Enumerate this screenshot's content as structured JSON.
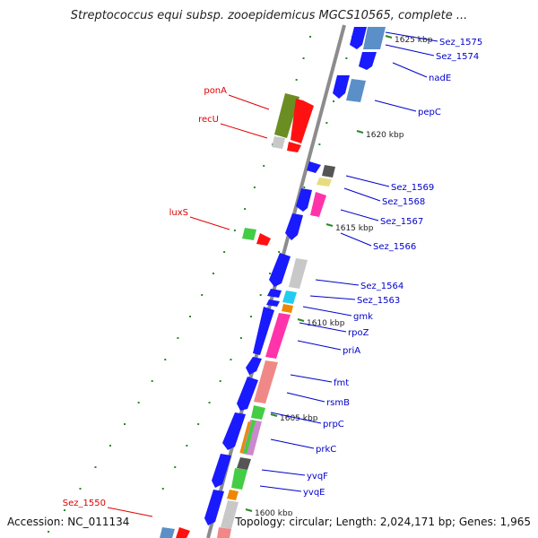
{
  "title": "Streptococcus equi subsp. zooepidemicus MGCS10565, complete ...",
  "footer": {
    "accession": "Accession: NC_011134",
    "summary": "Topology: circular; Length: 2,024,171 bp; Genes: 1,965"
  },
  "colors": {
    "backbone": "#8c8c8c",
    "forward_label": "#0000cc",
    "reverse_label": "#dd0000",
    "tick": "#2a8a2a"
  },
  "ticks": [
    {
      "label": "1625 kbp"
    },
    {
      "label": "1620 kbp"
    },
    {
      "label": "1615 kbp"
    },
    {
      "label": "1610 kbp"
    },
    {
      "label": "1605 kbp"
    },
    {
      "label": "1600 kbp"
    }
  ],
  "right_labels": [
    {
      "text": "Sez_1575"
    },
    {
      "text": "Sez_1574"
    },
    {
      "text": "nadE"
    },
    {
      "text": "pepC"
    },
    {
      "text": "Sez_1569"
    },
    {
      "text": "Sez_1568"
    },
    {
      "text": "Sez_1567"
    },
    {
      "text": "Sez_1566"
    },
    {
      "text": "Sez_1564"
    },
    {
      "text": "Sez_1563"
    },
    {
      "text": "gmk"
    },
    {
      "text": "rpoZ"
    },
    {
      "text": "priA"
    },
    {
      "text": "fmt"
    },
    {
      "text": "rsmB"
    },
    {
      "text": "prpC"
    },
    {
      "text": "prkC"
    },
    {
      "text": "yvqF"
    },
    {
      "text": "yvqE"
    }
  ],
  "left_labels": [
    {
      "text": "ponA"
    },
    {
      "text": "recU"
    },
    {
      "text": "luxS"
    },
    {
      "text": "Sez_1550"
    }
  ]
}
